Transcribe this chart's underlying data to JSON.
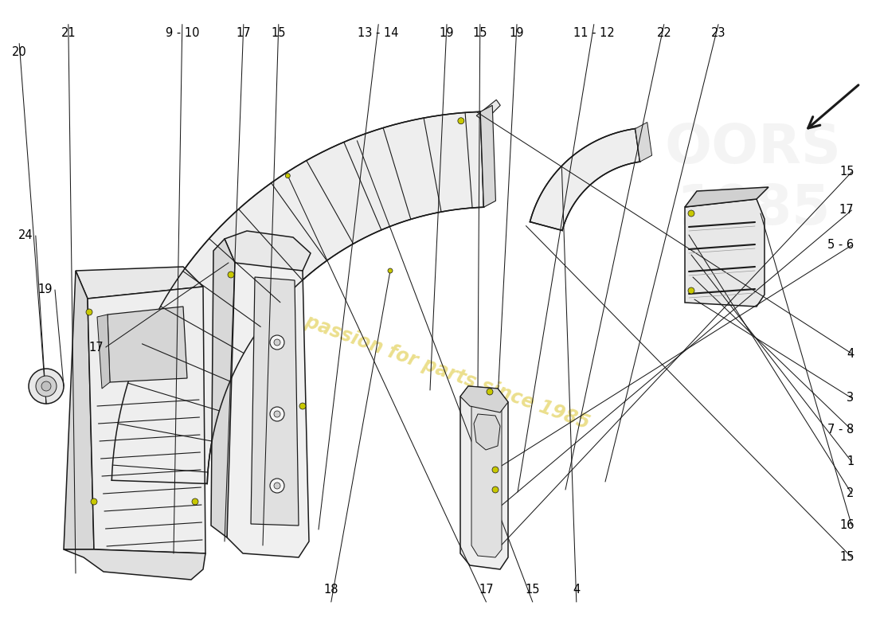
{
  "bg_color": "#ffffff",
  "line_color": "#1a1a1a",
  "fill_color": "#f0f0f0",
  "fill_dark": "#d8d8d8",
  "watermark_color": "#d4b800",
  "watermark_alpha": 0.45,
  "label_fs": 10.5,
  "right_labels": [
    {
      "text": "15",
      "fx": 0.975,
      "fy": 0.875
    },
    {
      "text": "16",
      "fx": 0.975,
      "fy": 0.825
    },
    {
      "text": "2",
      "fx": 0.975,
      "fy": 0.775
    },
    {
      "text": "1",
      "fx": 0.975,
      "fy": 0.725
    },
    {
      "text": "7 - 8",
      "fx": 0.975,
      "fy": 0.675
    },
    {
      "text": "3",
      "fx": 0.975,
      "fy": 0.625
    },
    {
      "text": "4",
      "fx": 0.975,
      "fy": 0.555
    },
    {
      "text": "5 - 6",
      "fx": 0.975,
      "fy": 0.385
    },
    {
      "text": "17",
      "fx": 0.975,
      "fy": 0.33
    },
    {
      "text": "15",
      "fx": 0.975,
      "fy": 0.27
    }
  ],
  "top_labels": [
    {
      "text": "18",
      "fx": 0.378,
      "fy": 0.935
    },
    {
      "text": "17",
      "fx": 0.555,
      "fy": 0.935
    },
    {
      "text": "15",
      "fx": 0.608,
      "fy": 0.935
    },
    {
      "text": "4",
      "fx": 0.658,
      "fy": 0.935
    }
  ],
  "left_labels": [
    {
      "text": "17",
      "fx": 0.118,
      "fy": 0.545
    },
    {
      "text": "19",
      "fx": 0.06,
      "fy": 0.455
    },
    {
      "text": "24",
      "fx": 0.038,
      "fy": 0.37
    }
  ],
  "bottom_labels": [
    {
      "text": "20",
      "fx": 0.022,
      "fy": 0.072
    },
    {
      "text": "21",
      "fx": 0.078,
      "fy": 0.042
    },
    {
      "text": "9 - 10",
      "fx": 0.208,
      "fy": 0.042
    },
    {
      "text": "17",
      "fx": 0.278,
      "fy": 0.042
    },
    {
      "text": "15",
      "fx": 0.318,
      "fy": 0.042
    },
    {
      "text": "13 - 14",
      "fx": 0.432,
      "fy": 0.042
    },
    {
      "text": "19",
      "fx": 0.51,
      "fy": 0.042
    },
    {
      "text": "15",
      "fx": 0.548,
      "fy": 0.042
    },
    {
      "text": "19",
      "fx": 0.59,
      "fy": 0.042
    },
    {
      "text": "11 - 12",
      "fx": 0.678,
      "fy": 0.042
    },
    {
      "text": "22",
      "fx": 0.758,
      "fy": 0.042
    },
    {
      "text": "23",
      "fx": 0.82,
      "fy": 0.042
    }
  ]
}
